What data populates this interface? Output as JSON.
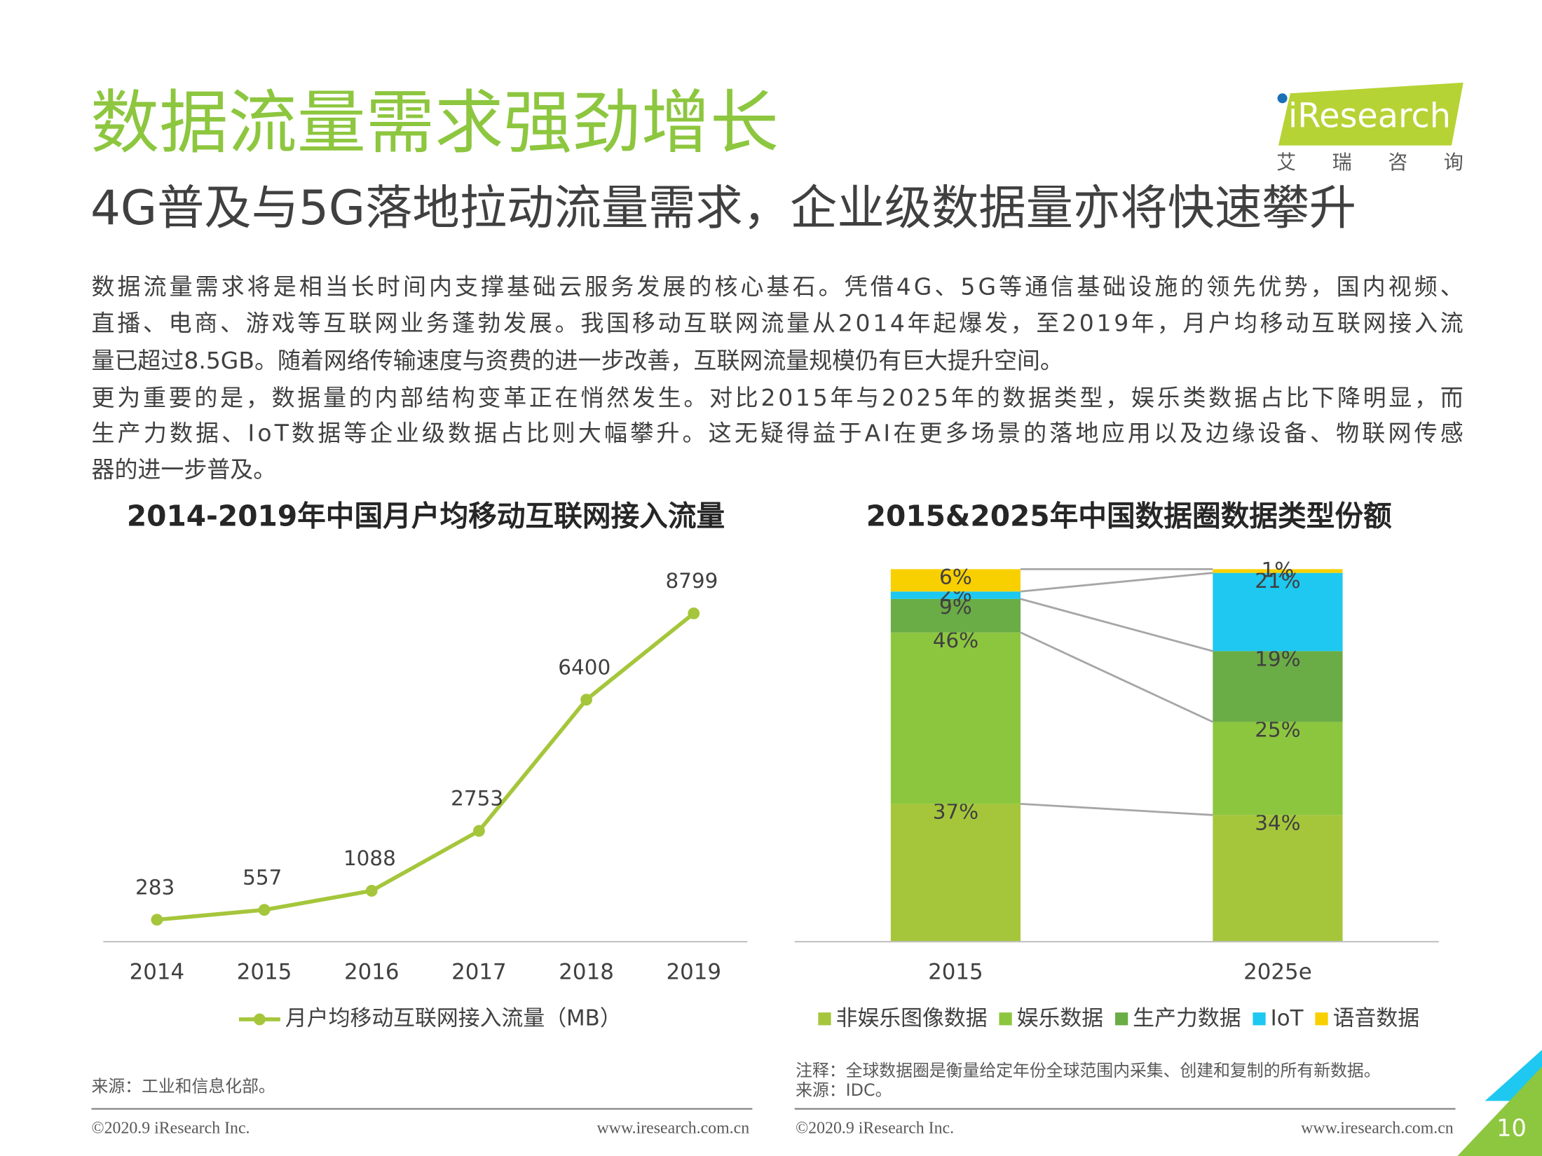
{
  "header": {
    "title": "数据流量需求强劲增长",
    "subtitle": "4G普及与5G落地拉动流量需求，企业级数据量亦将快速攀升",
    "logo": "iResearch",
    "logo_sub": "艾 瑞 咨 询"
  },
  "body": {
    "paragraphs": [
      [
        "数据流量需求将是相当长时间内支撑基础云服务发展的核心基石。凭借4G、5G等通信基础设施的领先优势，国内视频、",
        "直播、电商、游戏等互联网业务蓬勃发展。我国移动互联网流量从2014年起爆发，至2019年，月户均移动互联网接入流",
        "量已超过8.5GB。随着网络传输速度与资费的进一步改善，互联网流量规模仍有巨大提升空间。"
      ],
      [
        "更为重要的是，数据量的内部结构变革正在悄然发生。对比2015年与2025年的数据类型，娱乐类数据占比下降明显，而",
        "生产力数据、IoT数据等企业级数据占比则大幅攀升。这无疑得益于AI在更多场景的落地应用以及边缘设备、物联网传感",
        "器的进一步普及。"
      ]
    ]
  },
  "chart_data": [
    {
      "type": "line",
      "title": "2014-2019年中国月户均移动互联网接入流量",
      "categories": [
        "2014",
        "2015",
        "2016",
        "2017",
        "2018",
        "2019"
      ],
      "series": [
        {
          "name": "月户均移动互联网接入流量（MB）",
          "color": "#a5c63b",
          "values": [
            283,
            557,
            1088,
            2753,
            6400,
            8799
          ]
        }
      ]
    },
    {
      "type": "stacked_bar",
      "title": "2015&2025年中国数据圈数据类型份额",
      "categories": [
        "2015",
        "2025e"
      ],
      "series": [
        {
          "name": "非娱乐图像数据",
          "color": "#a5c63b",
          "values": [
            37,
            34
          ],
          "value_labels": [
            "37%",
            "34%"
          ]
        },
        {
          "name": "娱乐数据",
          "color": "#8cc63f",
          "values": [
            46,
            25
          ],
          "value_labels": [
            "46%",
            "25%"
          ]
        },
        {
          "name": "生产力数据",
          "color": "#6aac46",
          "values": [
            9,
            19
          ],
          "value_labels": [
            "9%",
            "19%"
          ]
        },
        {
          "name": "IoT",
          "color": "#1ec8f0",
          "values": [
            2,
            21
          ],
          "value_labels": [
            "2%",
            "21%"
          ]
        },
        {
          "name": "语音数据",
          "color": "#f8d000",
          "values": [
            6,
            1
          ],
          "value_labels": [
            "6%",
            "1%"
          ]
        }
      ]
    }
  ],
  "notes": {
    "left_source": "来源：工业和信息化部。",
    "right_note": "注释：全球数据圈是衡量给定年份全球范围内采集、创建和复制的所有新数据。",
    "right_source": "来源：IDC。"
  },
  "footer": {
    "copyright": "©2020.9 iResearch Inc.",
    "url": "www.iresearch.com.cn",
    "page": "10"
  }
}
